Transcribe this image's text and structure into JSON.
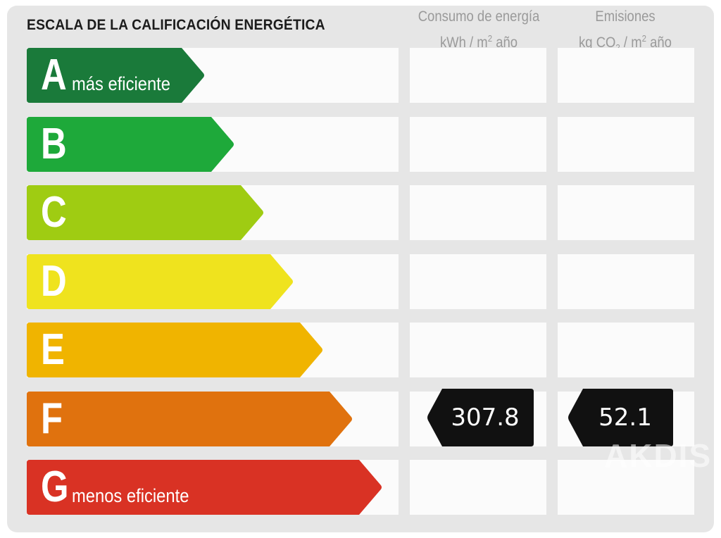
{
  "title": "ESCALA DE LA CALIFICACIÓN ENERGÉTICA",
  "columns": {
    "energy": {
      "line1": "Consumo de energía",
      "line2_pre": "kWh / m",
      "line2_sup": "2",
      "line2_post": " año"
    },
    "emissions": {
      "line1": "Emisiones",
      "line2_pre": "kg CO",
      "line2_sub": "2",
      "line2_mid": " / m",
      "line2_sup": "2",
      "line2_post": " año"
    }
  },
  "ratings": [
    {
      "letter": "A",
      "sublabel": "más eficiente",
      "color": "#1a7a3a"
    },
    {
      "letter": "B",
      "sublabel": "",
      "color": "#1ea93a"
    },
    {
      "letter": "C",
      "sublabel": "",
      "color": "#9fcc12"
    },
    {
      "letter": "D",
      "sublabel": "",
      "color": "#efe31e"
    },
    {
      "letter": "E",
      "sublabel": "",
      "color": "#f0b400"
    },
    {
      "letter": "F",
      "sublabel": "",
      "color": "#e0720e"
    },
    {
      "letter": "G",
      "sublabel": "menos eficiente",
      "color": "#d93224"
    }
  ],
  "current": {
    "rating": "F",
    "energy_value": "307.8",
    "emissions_value": "52.1",
    "marker_color": "#111111"
  },
  "watermark": {
    "main": "AKDIS"
  }
}
